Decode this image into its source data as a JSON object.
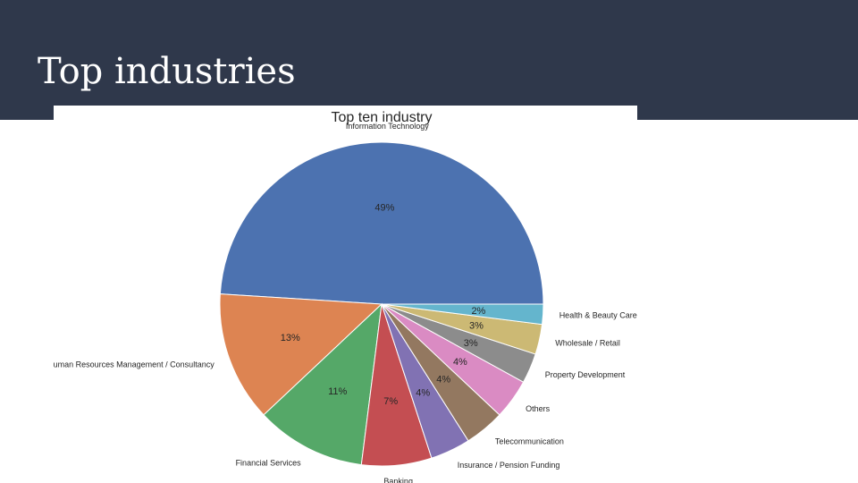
{
  "slide": {
    "title": "Top industries"
  },
  "chart_data": {
    "type": "pie",
    "title": "Top ten industry",
    "start_angle_deg": 0,
    "direction": "counterclockwise",
    "slices": [
      {
        "label": "Information Technology",
        "value": 49,
        "pct_label": "49%",
        "color": "#4c72b0"
      },
      {
        "label": "Human Resources Management / Consultancy",
        "value": 13,
        "pct_label": "13%",
        "color": "#dd8452"
      },
      {
        "label": "Financial Services",
        "value": 11,
        "pct_label": "11%",
        "color": "#55a868"
      },
      {
        "label": "Banking",
        "value": 7,
        "pct_label": "7%",
        "color": "#c44e52"
      },
      {
        "label": "Insurance / Pension Funding",
        "value": 4,
        "pct_label": "4%",
        "color": "#8172b3"
      },
      {
        "label": "Telecommunication",
        "value": 4,
        "pct_label": "4%",
        "color": "#937860"
      },
      {
        "label": "Others",
        "value": 4,
        "pct_label": "4%",
        "color": "#da8bc3"
      },
      {
        "label": "Property Development",
        "value": 3,
        "pct_label": "3%",
        "color": "#8c8c8c"
      },
      {
        "label": "Wholesale / Retail",
        "value": 3,
        "pct_label": "3%",
        "color": "#ccb974"
      },
      {
        "label": "Health & Beauty Care",
        "value": 2,
        "pct_label": "2%",
        "color": "#64b5cd"
      }
    ]
  }
}
